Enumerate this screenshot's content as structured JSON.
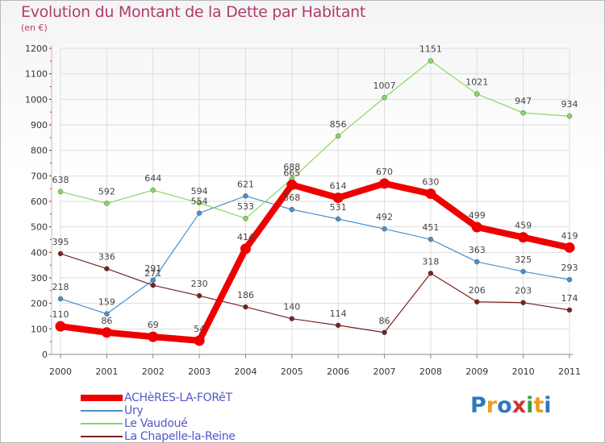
{
  "chart_data": {
    "type": "line",
    "title": "Evolution du Montant de la Dette par Habitant",
    "subtitle": "(en €)",
    "x": [
      "2000",
      "2001",
      "2002",
      "2003",
      "2004",
      "2005",
      "2006",
      "2007",
      "2008",
      "2009",
      "2010",
      "2011"
    ],
    "ylim": [
      0,
      1200
    ],
    "yticks": [
      "0",
      "100",
      "200",
      "300",
      "400",
      "500",
      "600",
      "700",
      "800",
      "900",
      "1000",
      "1100",
      "1200"
    ],
    "grid": true,
    "legend": "bottom-left",
    "series": [
      {
        "name": "ACHèRES-LA-FORêT",
        "color": "#ee0000",
        "values": [
          110,
          86,
          69,
          54,
          414,
          665,
          614,
          670,
          630,
          499,
          459,
          419
        ]
      },
      {
        "name": "Ury",
        "color": "#4a8fcc",
        "values": [
          218,
          159,
          291,
          554,
          621,
          568,
          531,
          492,
          451,
          363,
          325,
          293
        ]
      },
      {
        "name": "Le Vaudoué",
        "color": "#88d860",
        "values": [
          638,
          592,
          644,
          594,
          533,
          688,
          856,
          1007,
          1151,
          1021,
          947,
          934
        ]
      },
      {
        "name": "La Chapelle-la-Reine",
        "color": "#7a2020",
        "values": [
          395,
          336,
          271,
          230,
          186,
          140,
          114,
          86,
          318,
          206,
          203,
          174
        ]
      }
    ]
  },
  "logo": {
    "letters": [
      "P",
      "r",
      "o",
      "x",
      "i",
      "t",
      "i"
    ]
  }
}
